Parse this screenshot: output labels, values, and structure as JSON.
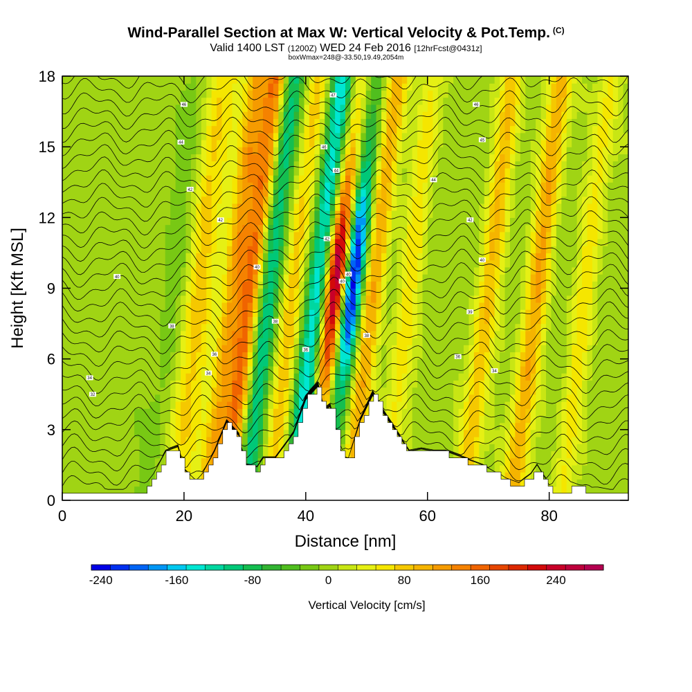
{
  "header": {
    "title": "Wind-Parallel Section at Max W: Vertical Velocity & Pot.Temp.",
    "copyright_mark": "(C)",
    "subtitle_a": "Valid 1400 LST",
    "subtitle_b": "(1200Z)",
    "subtitle_c": "WED 24 Feb 2016",
    "subtitle_d": "[12hrFcst@0431z]",
    "subtitle2": "boxWmax=248@-33.50,19.49,2054m"
  },
  "chart_data": {
    "type": "heatmap",
    "title": "Wind-Parallel Section at Max W: Vertical Velocity & Pot.Temp.",
    "xlabel": "Distance [nm]",
    "ylabel": "Height [Kft MSL]",
    "xlim": [
      0,
      93
    ],
    "ylim": [
      0,
      18
    ],
    "xticks": [
      0,
      20,
      40,
      60,
      80
    ],
    "yticks": [
      0,
      3,
      6,
      9,
      12,
      15,
      18
    ],
    "x_tick_labels": [
      "0",
      "20",
      "40",
      "60",
      "80"
    ],
    "y_tick_labels": [
      "0",
      "3",
      "6",
      "9",
      "12",
      "15",
      "18"
    ],
    "colorbar": {
      "label": "Vertical Velocity [cm/s]",
      "min": -250,
      "max": 290,
      "step": 20,
      "tick_values": [
        -240,
        -160,
        -80,
        0,
        80,
        160,
        240
      ],
      "tick_labels": [
        "-240",
        "-160",
        "-80",
        "0",
        "80",
        "160",
        "240"
      ],
      "colors": [
        "#0000e6",
        "#0030f0",
        "#0064f5",
        "#0096f5",
        "#00c8f0",
        "#00e6d2",
        "#00d7a0",
        "#00c878",
        "#14be50",
        "#32b432",
        "#50be1e",
        "#78c814",
        "#a0d414",
        "#c8e614",
        "#e6f014",
        "#f5e600",
        "#f5c800",
        "#f5b400",
        "#f59b00",
        "#f58200",
        "#f06400",
        "#e64600",
        "#dc2800",
        "#d20a0a",
        "#c80028",
        "#be003c",
        "#b40050"
      ]
    },
    "vertical_velocity_features": [
      {
        "name": "band",
        "x": 18,
        "w": -20
      },
      {
        "name": "band",
        "x": 22,
        "w": 60
      },
      {
        "name": "band",
        "x": 24,
        "w": 40
      },
      {
        "name": "band",
        "x": 28,
        "w": 110
      },
      {
        "name": "band",
        "x": 31,
        "w": 150
      },
      {
        "name": "band",
        "x": 34,
        "w": -110
      },
      {
        "name": "band",
        "x": 38,
        "w": 80
      },
      {
        "name": "band",
        "x": 42,
        "w": -150
      },
      {
        "name": "band",
        "x": 45,
        "w": 248
      },
      {
        "name": "band",
        "x": 47.5,
        "w": -220
      },
      {
        "name": "band",
        "x": 51,
        "w": 110
      },
      {
        "name": "band",
        "x": 57,
        "w": 60
      },
      {
        "name": "band",
        "x": 70,
        "w": 90
      },
      {
        "name": "band",
        "x": 78,
        "w": 110
      },
      {
        "name": "band",
        "x": 86,
        "w": 60
      }
    ],
    "terrain_kft": {
      "x": [
        0,
        13,
        15,
        17,
        19,
        20,
        22,
        23,
        25,
        27,
        29,
        30,
        32,
        33,
        35,
        38,
        40,
        42,
        43,
        44,
        46,
        47,
        49,
        51,
        53,
        55,
        57,
        59,
        61,
        63,
        65,
        67,
        69,
        71,
        73,
        75,
        77,
        78,
        80,
        82,
        84,
        86,
        88,
        90,
        93
      ],
      "h": [
        0.3,
        0.3,
        1.0,
        2.0,
        2.2,
        1.2,
        0.7,
        1.0,
        2.0,
        3.3,
        2.7,
        1.4,
        1.3,
        1.7,
        1.7,
        2.8,
        4.3,
        4.9,
        3.8,
        4.0,
        1.8,
        1.7,
        3.4,
        4.5,
        3.6,
        2.8,
        2.0,
        2.1,
        2.0,
        2.0,
        1.8,
        1.6,
        1.4,
        1.1,
        0.8,
        0.6,
        1.0,
        1.4,
        0.5,
        0.3,
        0.6,
        0.4,
        0.4,
        0.3,
        0.3
      ]
    },
    "isentrope_labels": [
      {
        "x": 20,
        "y": 16.8,
        "text": "46"
      },
      {
        "x": 19.5,
        "y": 15.2,
        "text": "44"
      },
      {
        "x": 21,
        "y": 13.2,
        "text": "42"
      },
      {
        "x": 26,
        "y": 11.9,
        "text": "42"
      },
      {
        "x": 9,
        "y": 9.5,
        "text": "40"
      },
      {
        "x": 32,
        "y": 9.9,
        "text": "40"
      },
      {
        "x": 18,
        "y": 7.4,
        "text": "38"
      },
      {
        "x": 35,
        "y": 7.6,
        "text": "38"
      },
      {
        "x": 25,
        "y": 6.2,
        "text": "36"
      },
      {
        "x": 24,
        "y": 5.4,
        "text": "34"
      },
      {
        "x": 4.5,
        "y": 5.2,
        "text": "34"
      },
      {
        "x": 5,
        "y": 4.5,
        "text": "32"
      },
      {
        "x": 40,
        "y": 6.4,
        "text": "36"
      },
      {
        "x": 43.5,
        "y": 11.1,
        "text": "42"
      },
      {
        "x": 44.5,
        "y": 17.2,
        "text": "47"
      },
      {
        "x": 43,
        "y": 15.0,
        "text": "46"
      },
      {
        "x": 45,
        "y": 14.0,
        "text": "44"
      },
      {
        "x": 46,
        "y": 9.3,
        "text": "40"
      },
      {
        "x": 47,
        "y": 9.6,
        "text": "40"
      },
      {
        "x": 50,
        "y": 7.0,
        "text": "38"
      },
      {
        "x": 61,
        "y": 13.6,
        "text": "44"
      },
      {
        "x": 68,
        "y": 16.8,
        "text": "46"
      },
      {
        "x": 69,
        "y": 15.3,
        "text": "45"
      },
      {
        "x": 67,
        "y": 11.9,
        "text": "42"
      },
      {
        "x": 69,
        "y": 10.2,
        "text": "40"
      },
      {
        "x": 67,
        "y": 8.0,
        "text": "39"
      },
      {
        "x": 65,
        "y": 6.1,
        "text": "36"
      },
      {
        "x": 71,
        "y": 5.5,
        "text": "34"
      }
    ]
  }
}
